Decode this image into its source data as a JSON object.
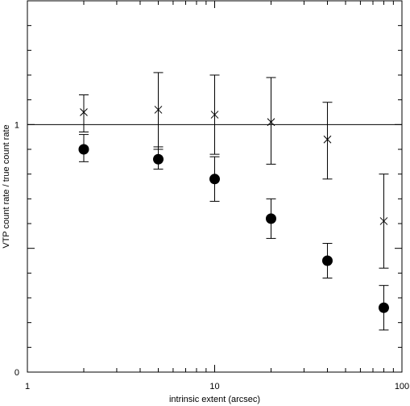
{
  "chart_data": {
    "type": "scatter",
    "title": "",
    "xlabel": "intrinsic extent (arcsec)",
    "ylabel": "VTP count rate / true count rate",
    "x_scale": "log",
    "xlim": [
      1,
      100
    ],
    "ylim": [
      0,
      1.5
    ],
    "x_tick_labels": [
      "1",
      "10",
      "100"
    ],
    "y_tick_labels": [
      "0",
      "1"
    ],
    "reference_line": {
      "y": 1.0
    },
    "series": [
      {
        "marker": "filled-circle",
        "points": [
          {
            "x": 2,
            "y": 0.9,
            "err_low": 0.85,
            "err_high": 0.96
          },
          {
            "x": 5,
            "y": 0.86,
            "err_low": 0.82,
            "err_high": 0.91
          },
          {
            "x": 10,
            "y": 0.78,
            "err_low": 0.69,
            "err_high": 0.87
          },
          {
            "x": 20,
            "y": 0.62,
            "err_low": 0.54,
            "err_high": 0.7
          },
          {
            "x": 40,
            "y": 0.45,
            "err_low": 0.38,
            "err_high": 0.52
          },
          {
            "x": 80,
            "y": 0.26,
            "err_low": 0.17,
            "err_high": 0.35
          }
        ]
      },
      {
        "marker": "cross",
        "points": [
          {
            "x": 2,
            "y": 1.05,
            "err_low": 0.97,
            "err_high": 1.12
          },
          {
            "x": 5,
            "y": 1.06,
            "err_low": 0.9,
            "err_high": 1.21
          },
          {
            "x": 10,
            "y": 1.04,
            "err_low": 0.88,
            "err_high": 1.2
          },
          {
            "x": 20,
            "y": 1.01,
            "err_low": 0.84,
            "err_high": 1.19
          },
          {
            "x": 40,
            "y": 0.94,
            "err_low": 0.78,
            "err_high": 1.09
          },
          {
            "x": 80,
            "y": 0.61,
            "err_low": 0.42,
            "err_high": 0.8
          }
        ]
      }
    ]
  }
}
